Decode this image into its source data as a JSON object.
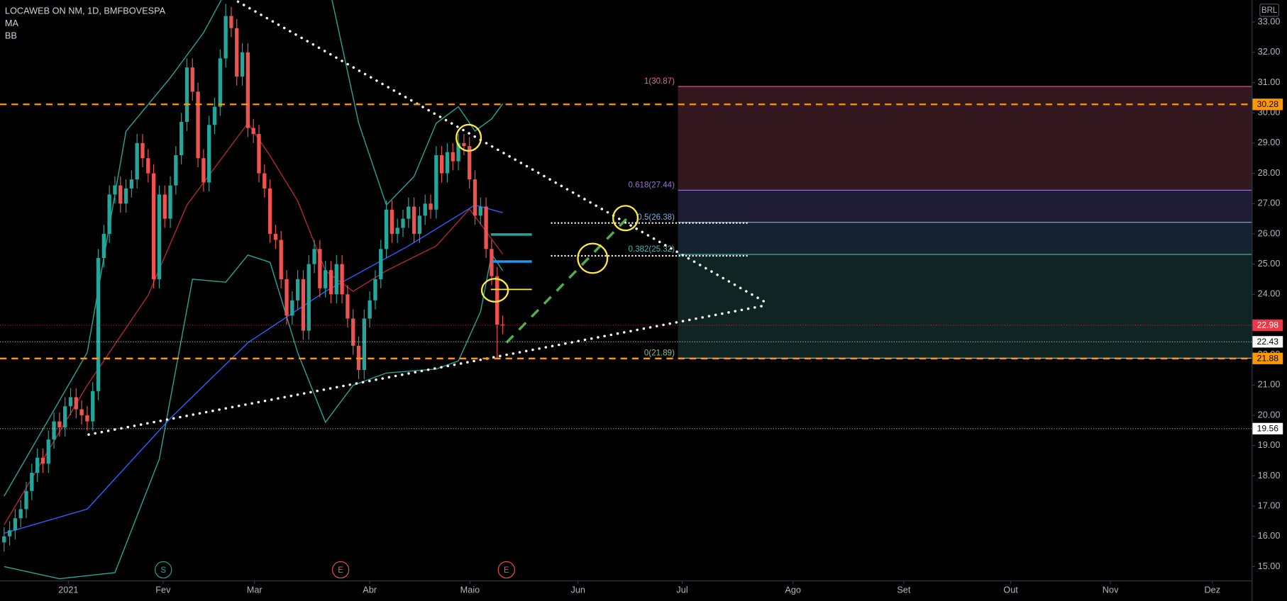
{
  "chart_data": {
    "type": "candlestick",
    "title": "LOCAWEB ON NM, 1D, BMFBOVESPA",
    "currency": "BRL",
    "up_color": "#26a69a",
    "down_color": "#ef5350",
    "open": [
      15.8,
      16.0,
      16.2,
      16.6,
      16.9,
      17.5,
      18.1,
      18.6,
      18.4,
      19.2,
      19.8,
      19.6,
      20.3,
      20.6,
      20.2,
      20.0,
      19.8,
      20.8,
      25.2,
      26.0,
      27.3,
      27.6,
      27.0,
      27.5,
      27.8,
      29.0,
      28.5,
      28.0,
      24.5,
      27.3,
      26.5,
      27.6,
      28.6,
      29.7,
      31.5,
      30.7,
      28.5,
      27.7,
      29.6,
      30.2,
      31.8,
      33.2,
      32.8,
      31.2,
      32.0,
      29.5,
      29.3,
      28.0,
      27.5,
      26.0,
      25.8,
      24.5,
      23.3,
      23.8,
      24.5,
      22.8,
      25.0,
      25.5,
      24.2,
      24.8,
      24.0,
      25.0,
      24.0,
      23.2,
      22.3,
      21.5,
      23.2,
      23.8,
      24.5,
      25.5,
      26.8,
      26.0,
      26.2,
      26.5,
      26.9,
      26.0,
      26.6,
      27.0,
      26.8,
      28.6,
      28.0,
      28.7,
      28.4,
      29.0,
      28.9,
      27.8,
      26.6,
      26.9,
      25.5,
      24.6,
      23.0
    ],
    "high": [
      16.3,
      16.5,
      16.9,
      17.2,
      17.8,
      18.4,
      18.9,
      18.9,
      19.5,
      20.1,
      20.1,
      20.6,
      20.9,
      20.9,
      20.5,
      20.3,
      21.1,
      25.5,
      26.3,
      27.6,
      27.9,
      27.9,
      27.8,
      28.1,
      29.3,
      29.3,
      28.8,
      28.3,
      27.6,
      27.6,
      27.9,
      28.9,
      30.0,
      31.8,
      31.8,
      31.0,
      28.8,
      29.9,
      30.5,
      32.1,
      33.6,
      33.5,
      33.1,
      32.3,
      32.3,
      29.8,
      29.6,
      28.3,
      27.8,
      26.3,
      26.1,
      24.8,
      24.1,
      24.8,
      24.8,
      25.3,
      25.8,
      25.8,
      25.1,
      25.1,
      25.3,
      25.3,
      24.3,
      23.5,
      22.6,
      23.5,
      24.1,
      24.8,
      25.8,
      27.1,
      27.1,
      26.5,
      26.8,
      27.2,
      27.2,
      26.9,
      27.3,
      27.3,
      28.9,
      28.9,
      29.0,
      29.0,
      29.3,
      29.3,
      29.2,
      28.1,
      27.2,
      27.2,
      25.8,
      24.9,
      23.3
    ],
    "low": [
      15.5,
      15.7,
      15.9,
      16.3,
      16.6,
      17.2,
      17.8,
      18.1,
      18.1,
      18.9,
      19.3,
      19.3,
      20.0,
      19.9,
      19.7,
      19.5,
      19.5,
      20.5,
      24.9,
      25.7,
      27.0,
      26.7,
      26.7,
      27.2,
      27.5,
      28.2,
      27.7,
      24.2,
      24.2,
      26.2,
      26.2,
      27.3,
      28.3,
      29.4,
      30.4,
      28.2,
      27.4,
      27.4,
      29.3,
      29.9,
      31.5,
      32.5,
      30.9,
      30.9,
      29.2,
      29.0,
      27.7,
      27.2,
      25.7,
      25.5,
      24.2,
      23.0,
      23.0,
      23.5,
      22.5,
      22.5,
      24.7,
      23.9,
      23.9,
      23.7,
      23.7,
      23.7,
      22.9,
      22.0,
      21.2,
      21.2,
      22.9,
      23.5,
      24.2,
      25.2,
      25.7,
      25.7,
      25.9,
      26.2,
      25.7,
      25.7,
      26.3,
      26.5,
      26.5,
      27.7,
      27.7,
      28.1,
      28.1,
      28.6,
      27.5,
      26.3,
      26.3,
      25.2,
      24.3,
      21.9,
      22.68
    ],
    "close": [
      16.0,
      16.2,
      16.6,
      16.9,
      17.5,
      18.1,
      18.6,
      18.4,
      19.2,
      19.8,
      19.6,
      20.3,
      20.6,
      20.2,
      20.0,
      19.8,
      20.8,
      25.2,
      26.0,
      27.3,
      27.6,
      27.0,
      27.5,
      27.8,
      29.0,
      28.5,
      28.0,
      24.5,
      27.3,
      26.5,
      27.6,
      28.6,
      29.7,
      31.5,
      30.7,
      28.5,
      27.7,
      29.6,
      30.2,
      31.8,
      33.2,
      32.8,
      31.2,
      32.0,
      29.5,
      29.3,
      28.0,
      27.5,
      26.0,
      25.8,
      24.5,
      23.3,
      23.8,
      24.5,
      22.8,
      25.0,
      25.5,
      24.2,
      24.8,
      24.0,
      25.0,
      24.0,
      23.2,
      22.3,
      21.5,
      23.2,
      23.8,
      24.5,
      25.5,
      26.8,
      26.0,
      26.2,
      26.5,
      26.9,
      26.0,
      26.6,
      27.0,
      26.8,
      28.6,
      28.0,
      28.7,
      28.4,
      29.0,
      28.9,
      27.8,
      26.6,
      26.9,
      25.5,
      24.6,
      23.0,
      22.98
    ],
    "indicators": [
      {
        "name": "MA",
        "lines": [
          {
            "color": "#2962ff",
            "x": [
              0,
              15,
              30,
              44,
              58,
              73,
              85,
              90
            ],
            "values": [
              16.1,
              16.9,
              19.9,
              22.4,
              24.1,
              25.6,
              26.95,
              26.7
            ]
          }
        ]
      },
      {
        "name": "BB",
        "lines": [
          {
            "color": "#26a69a",
            "x": [
              0,
              15,
              22,
              30,
              36,
              40,
              50,
              59,
              64,
              69,
              74,
              78,
              82,
              85,
              88,
              90
            ],
            "values": [
              17.33,
              22.07,
              29.39,
              31.16,
              32.65,
              34.0,
              34.5,
              33.9,
              29.66,
              26.95,
              27.9,
              29.66,
              30.2,
              29.4,
              29.8,
              30.3
            ]
          },
          {
            "color": "#b22833",
            "x": [
              0,
              15,
              26,
              33,
              44,
              48,
              53,
              58,
              63,
              69,
              78,
              84,
              90
            ],
            "values": [
              16.38,
              20.99,
              23.97,
              26.95,
              29.66,
              28.58,
              27.09,
              24.78,
              24.1,
              24.78,
              25.6,
              26.82,
              25.33
            ]
          },
          {
            "color": "#26a69a",
            "x": [
              0,
              10,
              20,
              28,
              34,
              40,
              44,
              48,
              53,
              58,
              63,
              69,
              78,
              82,
              86,
              88,
              90
            ],
            "values": [
              15.0,
              14.6,
              14.8,
              18.55,
              24.5,
              24.4,
              25.3,
              25.06,
              22.07,
              19.77,
              20.99,
              21.4,
              21.53,
              21.8,
              23.43,
              25.33,
              24.78
            ]
          }
        ]
      }
    ],
    "price_lines": [
      {
        "value": 30.28,
        "color": "#ff9800",
        "text_color": "#000000",
        "dash": "8 6",
        "width": 2
      },
      {
        "value": 22.98,
        "color": "#f23645",
        "text_color": "#ffffff",
        "dash": "1 2",
        "width": 1
      },
      {
        "value": 22.43,
        "color": "#ffffff",
        "text_color": "#000000",
        "dash": "1 2",
        "width": 1
      },
      {
        "value": 21.88,
        "color": "#ff9800",
        "text_color": "#000000",
        "dash": "8 6",
        "width": 2
      },
      {
        "value": 19.56,
        "color": "#ffffff",
        "text_color": "#000000",
        "dash": "1 2",
        "width": 1
      }
    ],
    "fib": {
      "levels": [
        {
          "level": 1,
          "value": 30.87,
          "label": "1(30.87)",
          "color": "#f06292",
          "fill": "#331820"
        },
        {
          "level": 0.618,
          "value": 27.44,
          "label": "0.618(27.44)",
          "color": "#9575cd",
          "fill": "#1e1d33"
        },
        {
          "level": 0.5,
          "value": 26.38,
          "label": "0.5(26.38)",
          "color": "#64b5f6",
          "fill": "#15222f"
        },
        {
          "level": 0.382,
          "value": 25.32,
          "label": "0.382(25.32)",
          "color": "#4db6ac",
          "fill": "#112424"
        },
        {
          "level": 0,
          "value": 21.89,
          "label": "0(21.89)",
          "color": "#81c784"
        }
      ]
    },
    "events": [
      {
        "label": "S",
        "color": "#26a69a"
      },
      {
        "label": "E",
        "color": "#ef5350"
      },
      {
        "label": "E",
        "color": "#ef5350"
      }
    ],
    "xlim": [
      -0.74,
      225.2
    ],
    "xticks": [
      {
        "value": 11.6,
        "label": "2021"
      },
      {
        "value": 28.7,
        "label": "Fev"
      },
      {
        "value": 45.2,
        "label": "Mar"
      },
      {
        "value": 66,
        "label": "Abr"
      },
      {
        "value": 84.1,
        "label": "Maio"
      },
      {
        "value": 103.6,
        "label": "Jun"
      },
      {
        "value": 122.4,
        "label": "Jul"
      },
      {
        "value": 142.4,
        "label": "Ago"
      },
      {
        "value": 162.4,
        "label": "Set"
      },
      {
        "value": 181.7,
        "label": "Out"
      },
      {
        "value": 199.7,
        "label": "Nov"
      },
      {
        "value": 218.1,
        "label": "Dez"
      }
    ],
    "ylim": [
      14.54,
      33.73
    ],
    "yticks": [
      {
        "value": 15,
        "label": "15.00"
      },
      {
        "value": 16,
        "label": "16.00"
      },
      {
        "value": 17,
        "label": "17.00"
      },
      {
        "value": 18,
        "label": "18.00"
      },
      {
        "value": 19,
        "label": "19.00"
      },
      {
        "value": 20,
        "label": "20.00"
      },
      {
        "value": 21,
        "label": "21.00"
      },
      {
        "value": 22,
        "label": "22.00"
      },
      {
        "value": 23,
        "label": "23.00"
      },
      {
        "value": 24,
        "label": "24.00"
      },
      {
        "value": 25,
        "label": "25.00"
      },
      {
        "value": 26,
        "label": "26.00"
      },
      {
        "value": 27,
        "label": "27.00"
      },
      {
        "value": 28,
        "label": "28.00"
      },
      {
        "value": 29,
        "label": "29.00"
      },
      {
        "value": 30,
        "label": "30.00"
      },
      {
        "value": 31,
        "label": "31.00"
      },
      {
        "value": 32,
        "label": "32.00"
      },
      {
        "value": 33,
        "label": "33.00"
      }
    ],
    "grid": false
  }
}
